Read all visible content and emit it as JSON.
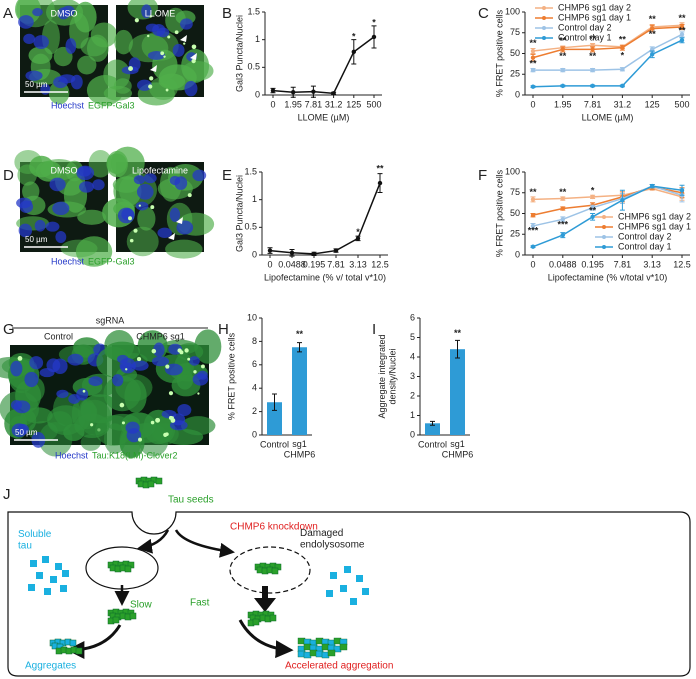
{
  "panel_labels": [
    "A",
    "B",
    "C",
    "D",
    "E",
    "F",
    "G",
    "H",
    "I",
    "J"
  ],
  "images": [
    {
      "titles": [
        "DMSO",
        "LLOME"
      ],
      "scale_bar": "50 µm",
      "stain": [
        "Hoechst",
        "EGFP-Gal3"
      ]
    },
    {
      "titles": [
        "DMSO",
        "Lipofectamine"
      ],
      "scale_bar": "50 µm",
      "stain": [
        "Hoechst",
        "EGFP-Gal3"
      ]
    },
    {
      "header": "sgRNA",
      "titles": [
        "Control",
        "CHMP6 sg1"
      ],
      "scale_bar": "50 µm",
      "stain": [
        "Hoechst",
        "Tau:K18(LM)-Clover2"
      ]
    }
  ],
  "chart_data": [
    {
      "type": "line",
      "ylabel": "Gal3 Puncta/Nuclei",
      "xlabel": "LLOME (µM)",
      "categories": [
        "0",
        "1.95",
        "7.81",
        "31.2",
        "125",
        "500"
      ],
      "color": "#111111",
      "values": [
        0.08,
        0.05,
        0.06,
        0.03,
        0.78,
        1.05
      ],
      "errors": [
        0.04,
        0.09,
        0.1,
        0.02,
        0.22,
        0.2
      ],
      "ylim": [
        0,
        1.5
      ],
      "yticks": [
        0,
        0.5,
        1,
        1.5
      ],
      "annotations": [
        {
          "text": "*",
          "x": "125",
          "y": 1.05
        },
        {
          "text": "*",
          "x": "500",
          "y": 1.3
        }
      ]
    },
    {
      "type": "line",
      "ylabel": "% FRET positive cells",
      "xlabel": "LLOME (µM)",
      "categories": [
        "0",
        "1.95",
        "7.81",
        "31.2",
        "125",
        "500"
      ],
      "series": [
        {
          "name": "CHMP6 sg1 day 2",
          "color": "#f4b183",
          "values": [
            53,
            57,
            60,
            58,
            82,
            84
          ],
          "errors": [
            3,
            2,
            2,
            2,
            3,
            3
          ]
        },
        {
          "name": "CHMP6 sg1 day 1",
          "color": "#ed7d31",
          "values": [
            45,
            55,
            55,
            57,
            80,
            82
          ],
          "errors": [
            4,
            3,
            3,
            3,
            4,
            3
          ]
        },
        {
          "name": "Control day 2",
          "color": "#9dc3e6",
          "values": [
            30,
            30,
            30,
            31,
            55,
            73
          ],
          "errors": [
            2,
            2,
            2,
            2,
            3,
            3
          ]
        },
        {
          "name": "Control day 1",
          "color": "#2e9bd6",
          "values": [
            10,
            11,
            11,
            11,
            49,
            66
          ],
          "errors": [
            1,
            1,
            1,
            1,
            4,
            3
          ]
        }
      ],
      "ylim": [
        0,
        100
      ],
      "yticks": [
        0,
        25,
        50,
        75,
        100
      ],
      "legend": "upper left",
      "annotations": [
        {
          "text": "**",
          "x": "0",
          "y": 62
        },
        {
          "text": "**",
          "x": "0",
          "y": 37
        },
        {
          "text": "**",
          "x": "1.95",
          "y": 65
        },
        {
          "text": "**",
          "x": "1.95",
          "y": 46
        },
        {
          "text": "**",
          "x": "7.81",
          "y": 67
        },
        {
          "text": "**",
          "x": "7.81",
          "y": 46
        },
        {
          "text": "**",
          "x": "31.2",
          "y": 66
        },
        {
          "text": "*",
          "x": "31.2",
          "y": 47
        },
        {
          "text": "**",
          "x": "125",
          "y": 91
        },
        {
          "text": "**",
          "x": "125",
          "y": 73
        },
        {
          "text": "**",
          "x": "500",
          "y": 92
        },
        {
          "text": "**",
          "x": "500",
          "y": 77
        }
      ]
    },
    {
      "type": "line",
      "ylabel": "Gal3 Puncta/Nuclei",
      "xlabel": "Lipofectamine (% v/ total v*10)",
      "categories": [
        "0",
        "0.0488",
        "0.195",
        "7.81",
        "3.13",
        "12.5"
      ],
      "color": "#111111",
      "values": [
        0.08,
        0.04,
        0.02,
        0.08,
        0.3,
        1.3
      ],
      "errors": [
        0.05,
        0.06,
        0.03,
        0.03,
        0.04,
        0.17
      ],
      "ylim": [
        0,
        1.5
      ],
      "yticks": [
        0,
        0.5,
        1,
        1.5
      ],
      "annotations": [
        {
          "text": "*",
          "x": "3.13",
          "y": 0.4
        },
        {
          "text": "**",
          "x": "12.5",
          "y": 1.55
        }
      ]
    },
    {
      "type": "line",
      "ylabel": "% FRET positive cells",
      "xlabel": "Lipofectamine (% v/total v*10)",
      "categories": [
        "0",
        "0.0488",
        "0.195",
        "7.81",
        "3.13",
        "12.5"
      ],
      "series": [
        {
          "name": "CHMP6 sg1 day 2",
          "color": "#f4b183",
          "values": [
            67,
            68,
            70,
            72,
            80,
            70
          ],
          "errors": [
            3,
            2,
            2,
            2,
            2,
            4
          ]
        },
        {
          "name": "CHMP6 sg1 day 1",
          "color": "#ed7d31",
          "values": [
            48,
            56,
            60,
            70,
            82,
            75
          ],
          "errors": [
            2,
            2,
            3,
            6,
            3,
            6
          ]
        },
        {
          "name": "Control day 2",
          "color": "#9dc3e6",
          "values": [
            35,
            43,
            57,
            68,
            83,
            72
          ],
          "errors": [
            3,
            3,
            3,
            6,
            2,
            8
          ]
        },
        {
          "name": "Control day 1",
          "color": "#2e9bd6",
          "values": [
            10,
            24,
            46,
            66,
            83,
            78
          ],
          "errors": [
            1,
            3,
            4,
            12,
            2,
            6
          ]
        }
      ],
      "ylim": [
        0,
        100
      ],
      "yticks": [
        0,
        25,
        50,
        75,
        100
      ],
      "legend": "lower right",
      "annotations": [
        {
          "text": "**",
          "x": "0",
          "y": 75
        },
        {
          "text": "***",
          "x": "0",
          "y": 29
        },
        {
          "text": "**",
          "x": "0.0488",
          "y": 75
        },
        {
          "text": "***",
          "x": "0.0488",
          "y": 36
        },
        {
          "text": "*",
          "x": "0.195",
          "y": 77
        },
        {
          "text": "**",
          "x": "0.195",
          "y": 53
        }
      ]
    },
    {
      "type": "bar",
      "ylabel": "% FRET positive cells",
      "categories": [
        "Control",
        "sg1\nCHMP6"
      ],
      "color": "#2e9bd6",
      "values": [
        2.8,
        7.5
      ],
      "errors": [
        0.7,
        0.4
      ],
      "ylim": [
        0,
        10
      ],
      "yticks": [
        0,
        2,
        4,
        6,
        8,
        10
      ],
      "annotations": [
        {
          "text": "**",
          "x": "sg1\nCHMP6",
          "y": 8.6
        }
      ]
    },
    {
      "type": "bar",
      "ylabel": "Aggregate integrated\ndensity/Nuclei",
      "categories": [
        "Control",
        "sg1\nCHMP6"
      ],
      "color": "#2e9bd6",
      "values": [
        0.6,
        4.4
      ],
      "errors": [
        0.1,
        0.45
      ],
      "ylim": [
        0,
        6
      ],
      "yticks": [
        0,
        1,
        2,
        3,
        4,
        5,
        6
      ],
      "annotations": [
        {
          "text": "**",
          "x": "sg1\nCHMP6",
          "y": 5.2
        }
      ]
    }
  ],
  "diagram": {
    "tau_seeds": "Tau seeds",
    "knockdown": "CHMP6 knockdown",
    "damaged": "Damaged\nendolysosome",
    "soluble": "Soluble\ntau",
    "slow": "Slow",
    "fast": "Fast",
    "aggregates": "Aggregates",
    "accelerated": "Accelerated aggregation"
  }
}
